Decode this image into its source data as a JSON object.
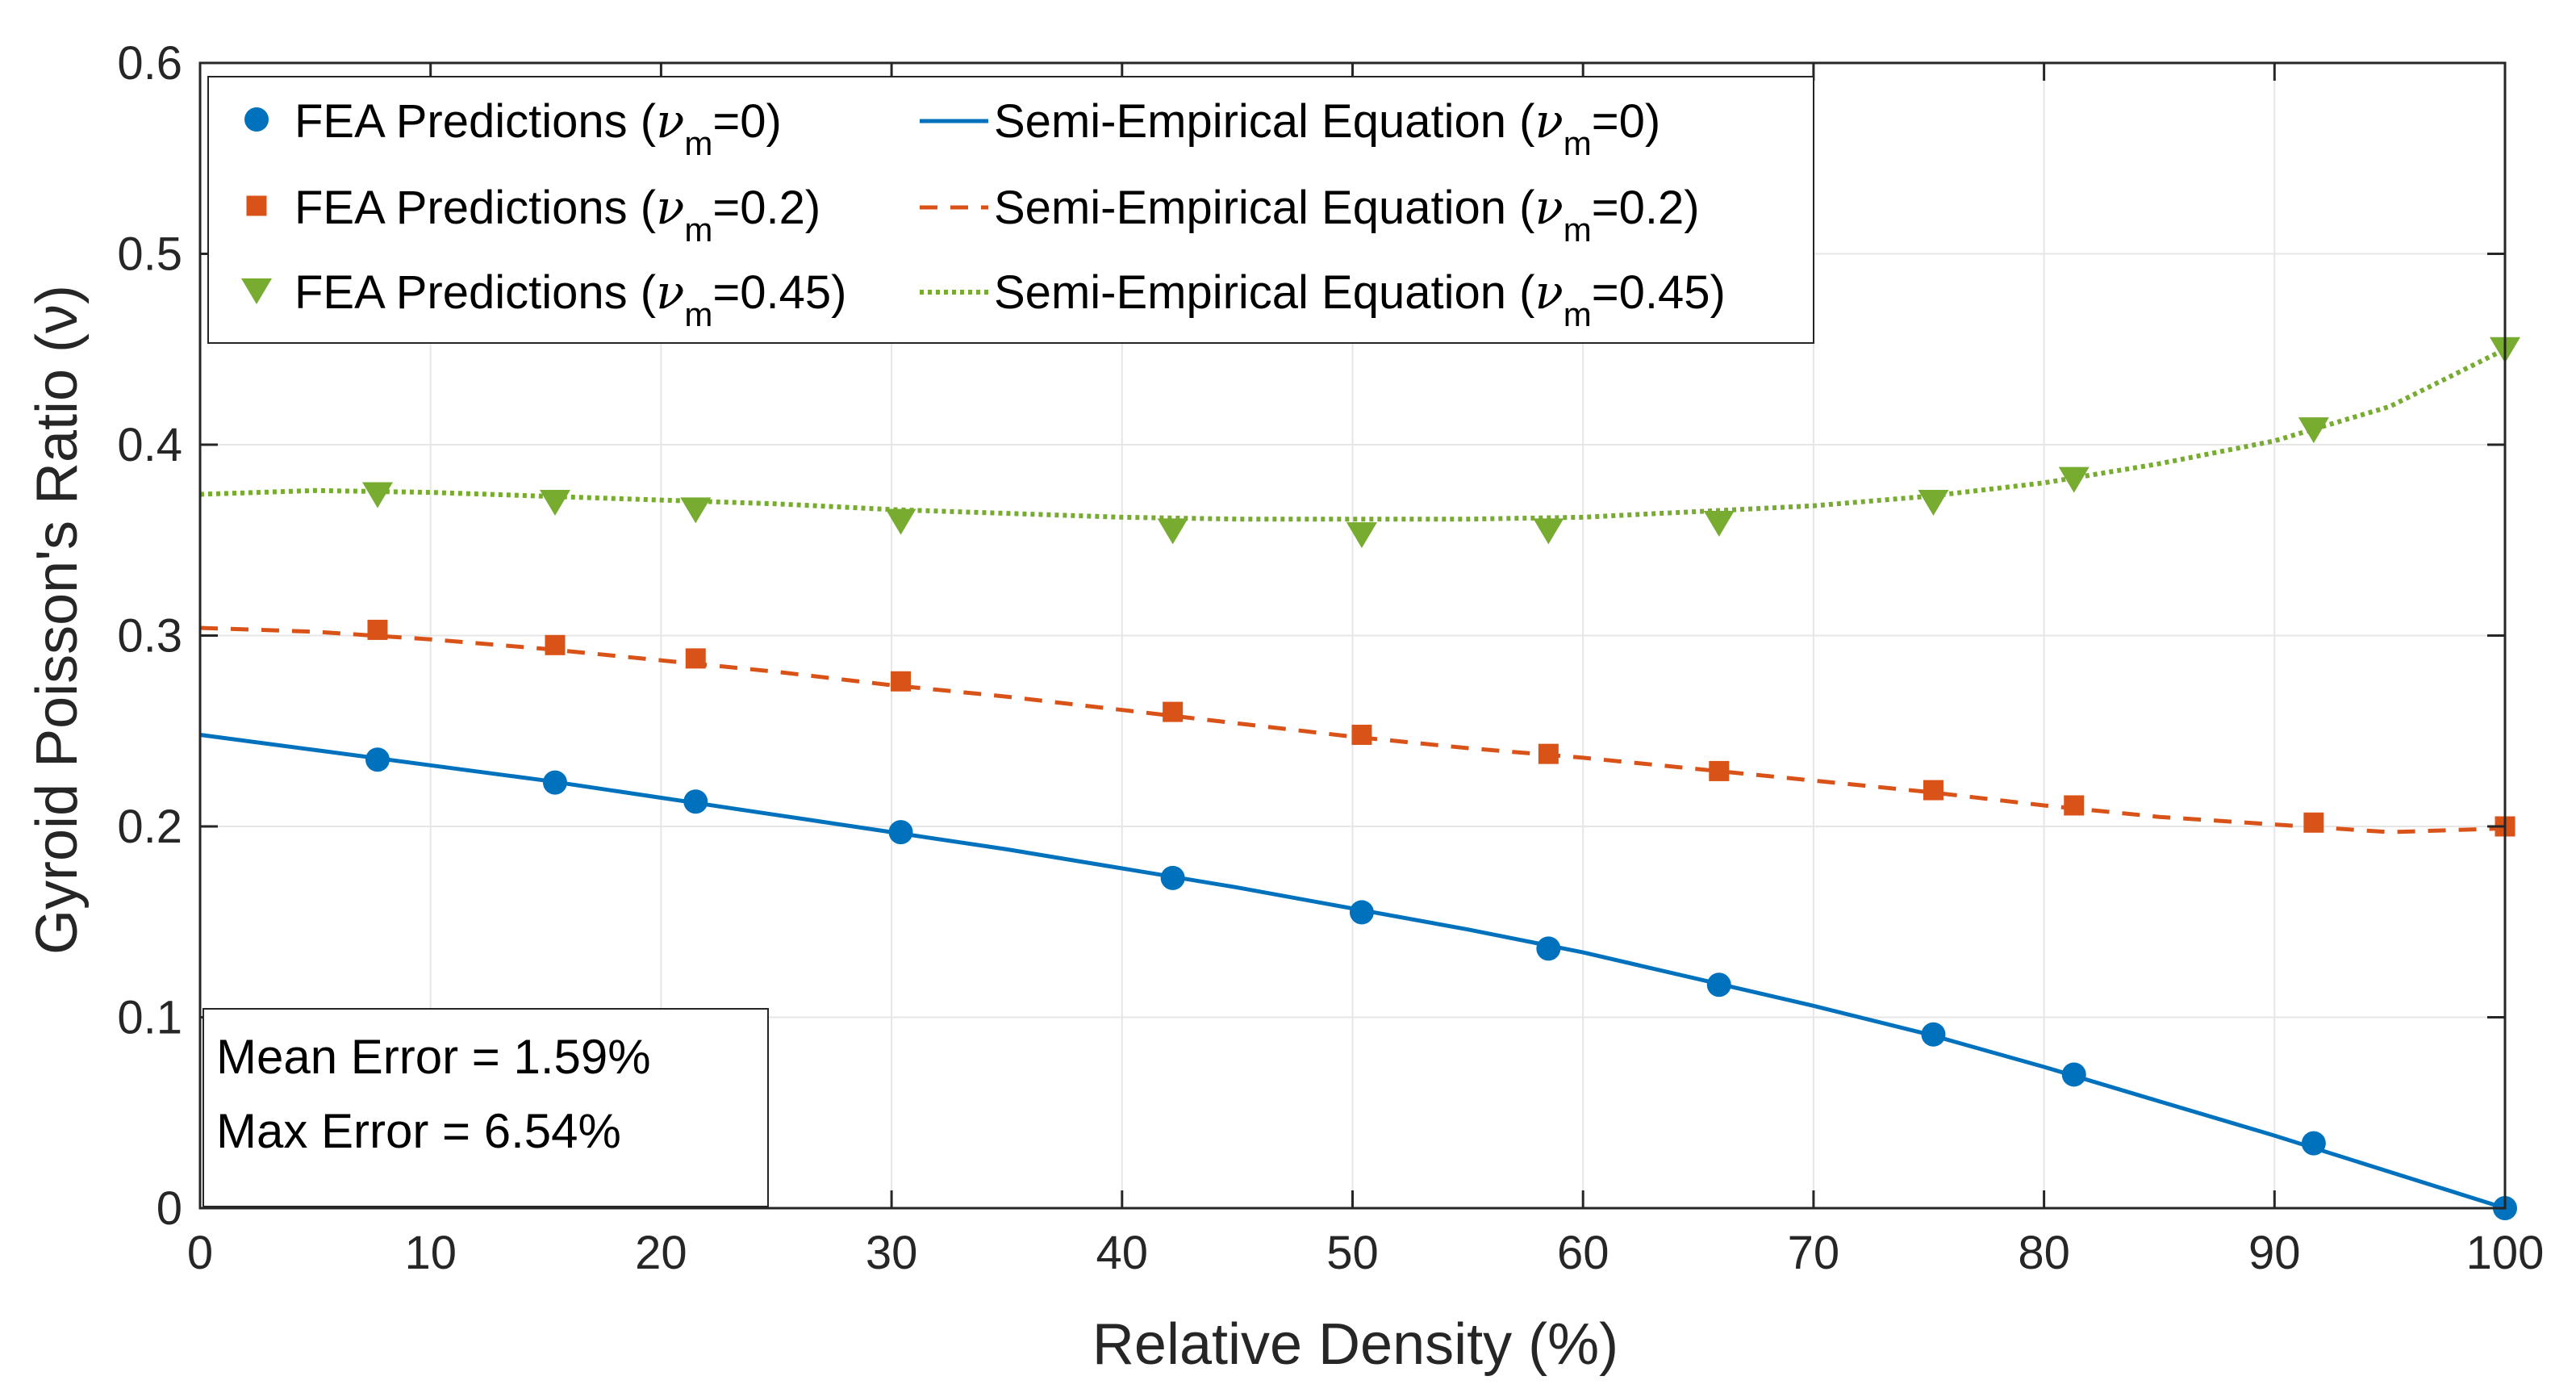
{
  "chart_data": {
    "type": "scatter",
    "title": "",
    "xlabel": "Relative Density (%)",
    "ylabel": "Gyroid Poisson's Ratio (ν)",
    "xlim": [
      0,
      100
    ],
    "ylim": [
      0,
      0.6
    ],
    "xticks": [
      0,
      10,
      20,
      30,
      40,
      50,
      60,
      70,
      80,
      90,
      100
    ],
    "yticks": [
      0,
      0.1,
      0.2,
      0.3,
      0.4,
      0.5,
      0.6
    ],
    "xtick_labels": [
      "0",
      "10",
      "20",
      "30",
      "40",
      "50",
      "60",
      "70",
      "80",
      "90",
      "100"
    ],
    "ytick_labels": [
      "0",
      "0.1",
      "0.2",
      "0.3",
      "0.4",
      "0.5",
      "0.6"
    ],
    "grid": true,
    "legend_position": "top-left",
    "series": [
      {
        "name": "FEA Predictions (ν_m=0)",
        "legend_main": "FEA Predictions (",
        "legend_greek": "ν",
        "legend_sub": "m",
        "legend_tail": "=0)",
        "kind": "markers",
        "marker": "circle",
        "color": "#0072BD",
        "x": [
          7.7,
          15.4,
          21.5,
          30.4,
          42.2,
          50.4,
          58.5,
          65.9,
          75.2,
          81.3,
          91.7,
          100
        ],
        "y": [
          0.235,
          0.223,
          0.213,
          0.197,
          0.173,
          0.155,
          0.136,
          0.117,
          0.091,
          0.07,
          0.034,
          0.0
        ]
      },
      {
        "name": "FEA Predictions (ν_m=0.2)",
        "legend_main": "FEA Predictions (",
        "legend_greek": "ν",
        "legend_sub": "m",
        "legend_tail": "=0.2)",
        "kind": "markers",
        "marker": "square",
        "color": "#D95319",
        "x": [
          7.7,
          15.4,
          21.5,
          30.4,
          42.2,
          50.4,
          58.5,
          65.9,
          75.2,
          81.3,
          91.7,
          100
        ],
        "y": [
          0.303,
          0.295,
          0.288,
          0.276,
          0.26,
          0.248,
          0.238,
          0.229,
          0.219,
          0.211,
          0.202,
          0.2
        ]
      },
      {
        "name": "FEA Predictions (ν_m=0.45)",
        "legend_main": "FEA Predictions (",
        "legend_greek": "ν",
        "legend_sub": "m",
        "legend_tail": "=0.45)",
        "kind": "markers",
        "marker": "triangle-down",
        "color": "#77AC30",
        "x": [
          7.7,
          15.4,
          21.5,
          30.4,
          42.2,
          50.4,
          58.5,
          65.9,
          75.2,
          81.3,
          91.7,
          100
        ],
        "y": [
          0.374,
          0.37,
          0.366,
          0.36,
          0.355,
          0.353,
          0.355,
          0.359,
          0.37,
          0.382,
          0.408,
          0.45
        ]
      },
      {
        "name": "Semi-Empirical Equation (ν_m=0)",
        "legend_main": "Semi-Empirical Equation (",
        "legend_greek": "ν",
        "legend_sub": "m",
        "legend_tail": "=0)",
        "kind": "line",
        "dash": "solid",
        "color": "#0072BD",
        "x": [
          0,
          5,
          10,
          15,
          20,
          25,
          30,
          35,
          40,
          45,
          50,
          55,
          60,
          65,
          70,
          75,
          80,
          85,
          90,
          95,
          100
        ],
        "y": [
          0.248,
          0.24,
          0.232,
          0.224,
          0.215,
          0.206,
          0.197,
          0.188,
          0.178,
          0.168,
          0.157,
          0.146,
          0.134,
          0.12,
          0.106,
          0.091,
          0.074,
          0.056,
          0.038,
          0.019,
          0.0
        ]
      },
      {
        "name": "Semi-Empirical Equation (ν_m=0.2)",
        "legend_main": "Semi-Empirical Equation (",
        "legend_greek": "ν",
        "legend_sub": "m",
        "legend_tail": "=0.2)",
        "kind": "line",
        "dash": "dashed",
        "color": "#D95319",
        "x": [
          0,
          5,
          10,
          15,
          20,
          25,
          30,
          35,
          40,
          45,
          50,
          55,
          60,
          65,
          70,
          75,
          80,
          85,
          90,
          95,
          100
        ],
        "y": [
          0.304,
          0.302,
          0.298,
          0.293,
          0.287,
          0.281,
          0.274,
          0.268,
          0.261,
          0.254,
          0.247,
          0.241,
          0.236,
          0.23,
          0.224,
          0.218,
          0.211,
          0.205,
          0.201,
          0.197,
          0.199
        ]
      },
      {
        "name": "Semi-Empirical Equation (ν_m=0.45)",
        "legend_main": "Semi-Empirical Equation (",
        "legend_greek": "ν",
        "legend_sub": "m",
        "legend_tail": "=0.45)",
        "kind": "line",
        "dash": "dotted",
        "color": "#77AC30",
        "x": [
          0,
          5,
          10,
          15,
          20,
          25,
          30,
          35,
          40,
          45,
          50,
          55,
          60,
          65,
          70,
          75,
          80,
          85,
          90,
          95,
          100
        ],
        "y": [
          0.374,
          0.376,
          0.375,
          0.373,
          0.371,
          0.369,
          0.366,
          0.364,
          0.362,
          0.361,
          0.361,
          0.361,
          0.362,
          0.365,
          0.368,
          0.373,
          0.38,
          0.39,
          0.402,
          0.42,
          0.45
        ]
      }
    ],
    "annotation": {
      "lines": [
        "Mean Error = 1.59%",
        "Max Error = 6.54%"
      ],
      "position": "bottom-left"
    }
  }
}
